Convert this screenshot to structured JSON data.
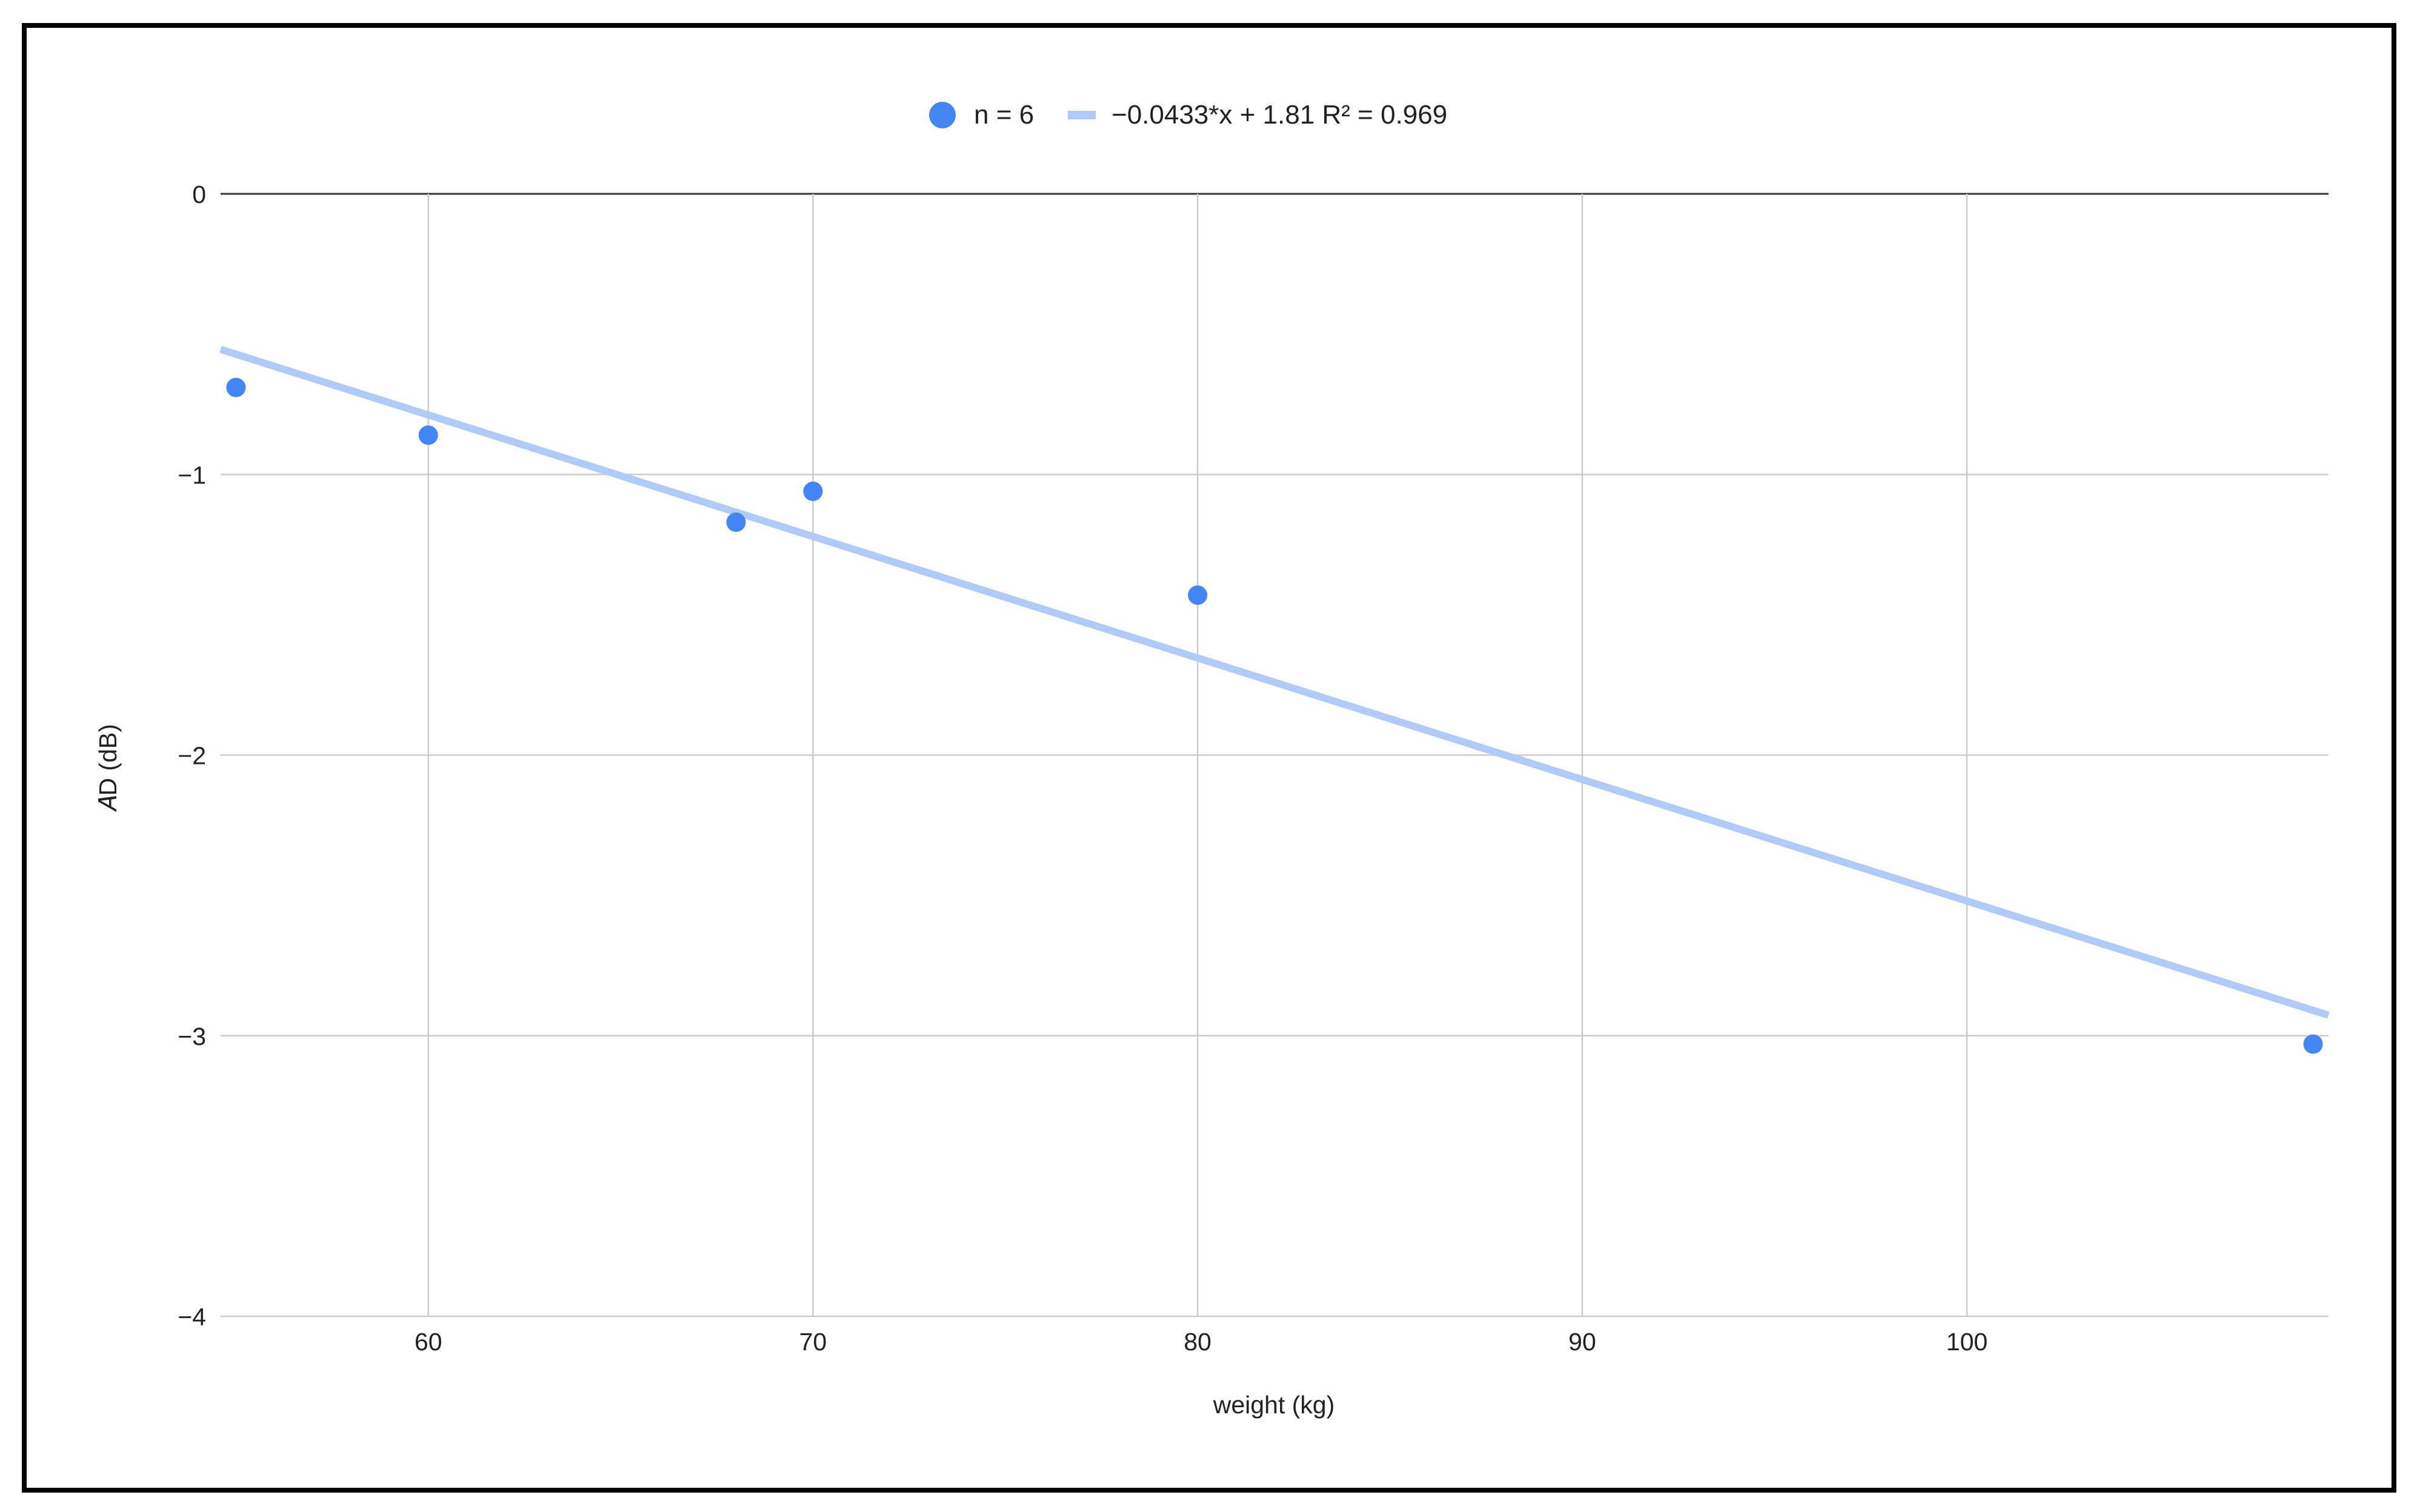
{
  "chart_data": {
    "type": "scatter",
    "xlabel": "weight (kg)",
    "ylabel": "𝐴D (dB)",
    "xlim": [
      54.6,
      109.4
    ],
    "ylim": [
      -4,
      0
    ],
    "xticks": [
      60,
      70,
      80,
      90,
      100
    ],
    "yticks": [
      0,
      -1,
      -2,
      -3,
      -4
    ],
    "ytick_labels": [
      "0",
      "−1",
      "−2",
      "−3",
      "−4"
    ],
    "grid": true,
    "legend_position": "top-center",
    "series": [
      {
        "name": "n = 6",
        "color": "#4285F4",
        "points": [
          {
            "x": 55,
            "y": -0.69
          },
          {
            "x": 60,
            "y": -0.86
          },
          {
            "x": 68,
            "y": -1.17
          },
          {
            "x": 70,
            "y": -1.06
          },
          {
            "x": 80,
            "y": -1.43
          },
          {
            "x": 109,
            "y": -3.03
          }
        ]
      }
    ],
    "trendline": {
      "name": "−0.0433*x + 1.81 R² = 0.969",
      "slope": -0.0433,
      "intercept": 1.81,
      "r2": 0.969,
      "color": "#AECBFA"
    }
  }
}
